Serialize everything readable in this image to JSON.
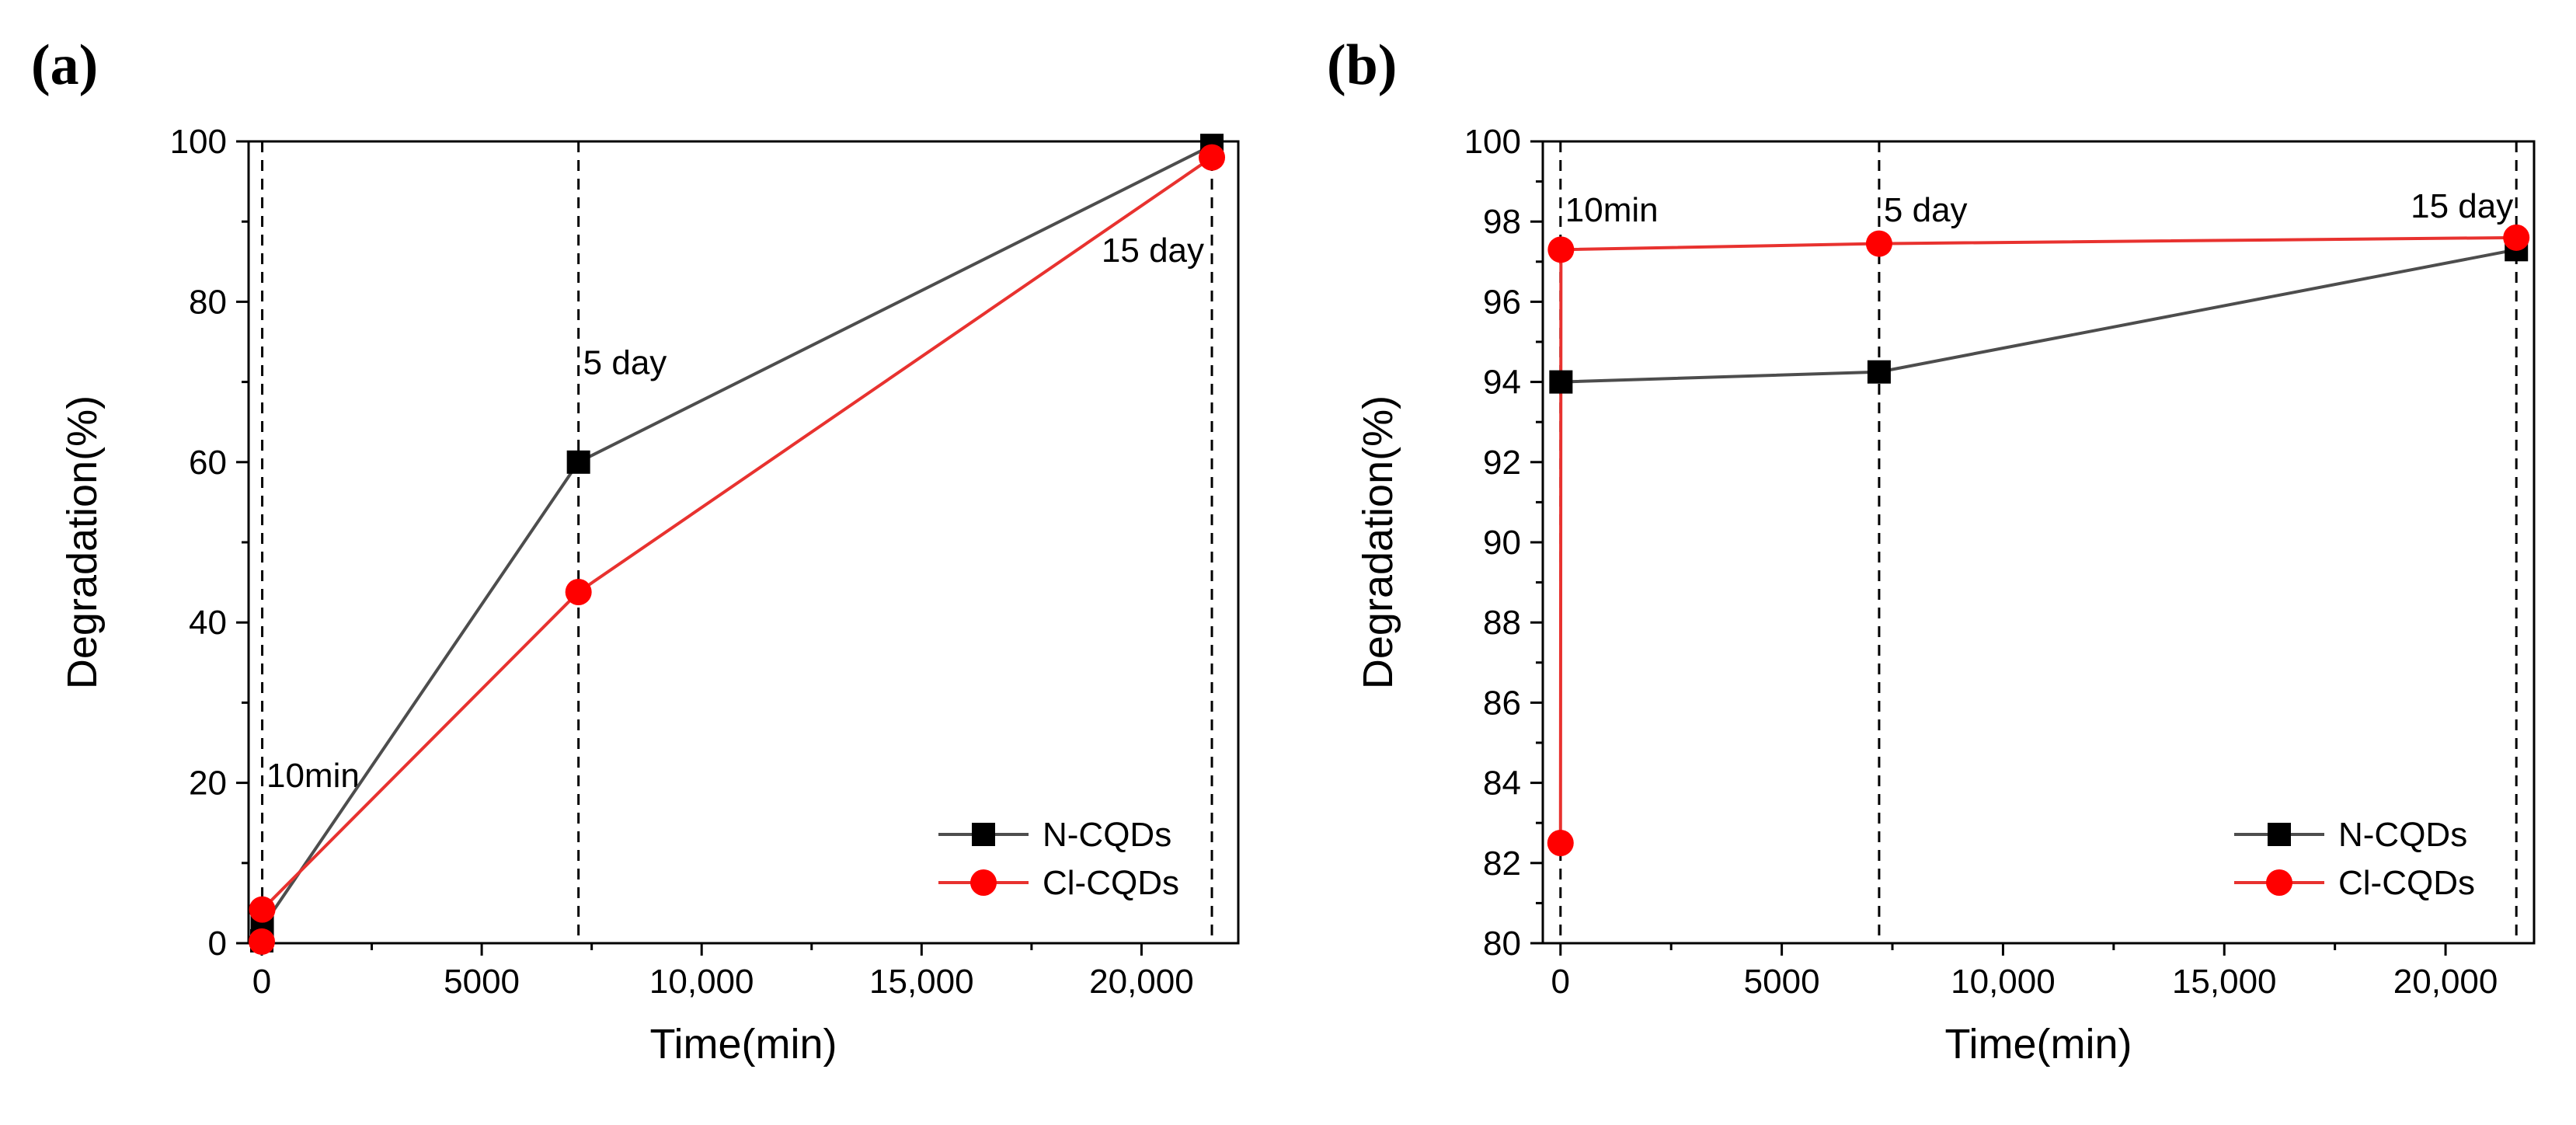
{
  "chart_data": [
    {
      "panel": "(a)",
      "type": "line",
      "xlabel": "Time(min)",
      "ylabel": "Degradation(%)",
      "xlim": [
        -300,
        22200
      ],
      "ylim": [
        0,
        100
      ],
      "x_ticks": [
        0,
        5000,
        10000,
        15000,
        20000
      ],
      "x_tick_labels": [
        "0",
        "5000",
        "10,000",
        "15,000",
        "20,000"
      ],
      "y_ticks": [
        0,
        20,
        40,
        60,
        80,
        100
      ],
      "y_tick_labels": [
        "0",
        "20",
        "40",
        "60",
        "80",
        "100"
      ],
      "series": [
        {
          "name": "N-CQDs",
          "color": "#4d4d4d",
          "marker_color": "#000000",
          "marker": "square",
          "x": [
            0,
            10,
            7200,
            21600
          ],
          "y": [
            0.3,
            2,
            60,
            99.5
          ]
        },
        {
          "name": "Cl-CQDs",
          "color": "#e8322f",
          "marker_color": "#ff0000",
          "marker": "circle",
          "x": [
            0,
            10,
            7200,
            21600
          ],
          "y": [
            0.2,
            4.2,
            43.8,
            98
          ]
        }
      ],
      "vlines": [
        10,
        7200,
        21600
      ],
      "annotations": [
        {
          "text": "10min",
          "x": 0,
          "y": 19.5
        },
        {
          "text": "5 day",
          "x": 7200,
          "y": 71
        },
        {
          "text": "15 day",
          "x": 21600,
          "y": 85
        }
      ],
      "legend": "bottom-right"
    },
    {
      "panel": "(b)",
      "type": "line",
      "xlabel": "Time(min)",
      "ylabel": "Degradation(%)",
      "xlim": [
        -400,
        22000
      ],
      "ylim": [
        80,
        100
      ],
      "x_ticks": [
        0,
        5000,
        10000,
        15000,
        20000
      ],
      "x_tick_labels": [
        "0",
        "5000",
        "10,000",
        "15,000",
        "20,000"
      ],
      "y_ticks": [
        80,
        82,
        84,
        86,
        88,
        90,
        92,
        94,
        96,
        98,
        100
      ],
      "y_tick_labels": [
        "80",
        "82",
        "84",
        "86",
        "88",
        "90",
        "92",
        "94",
        "96",
        "98",
        "100"
      ],
      "series": [
        {
          "name": "N-CQDs",
          "color": "#4d4d4d",
          "marker_color": "#000000",
          "marker": "square",
          "x": [
            10,
            7200,
            21600
          ],
          "y": [
            94.0,
            94.25,
            97.3
          ]
        },
        {
          "name": "Cl-CQDs",
          "color": "#e8322f",
          "marker_color": "#ff0000",
          "marker": "circle",
          "x": [
            0,
            10,
            7200,
            21600
          ],
          "y": [
            82.5,
            97.3,
            97.45,
            97.6
          ]
        }
      ],
      "vlines": [
        0,
        7200,
        21600
      ],
      "annotations": [
        {
          "text": "10min",
          "x": 0,
          "y": 98
        },
        {
          "text": "5 day",
          "x": 7200,
          "y": 98
        },
        {
          "text": "15 day",
          "x": 21600,
          "y": 98.1
        }
      ],
      "legend": "bottom-right"
    }
  ]
}
